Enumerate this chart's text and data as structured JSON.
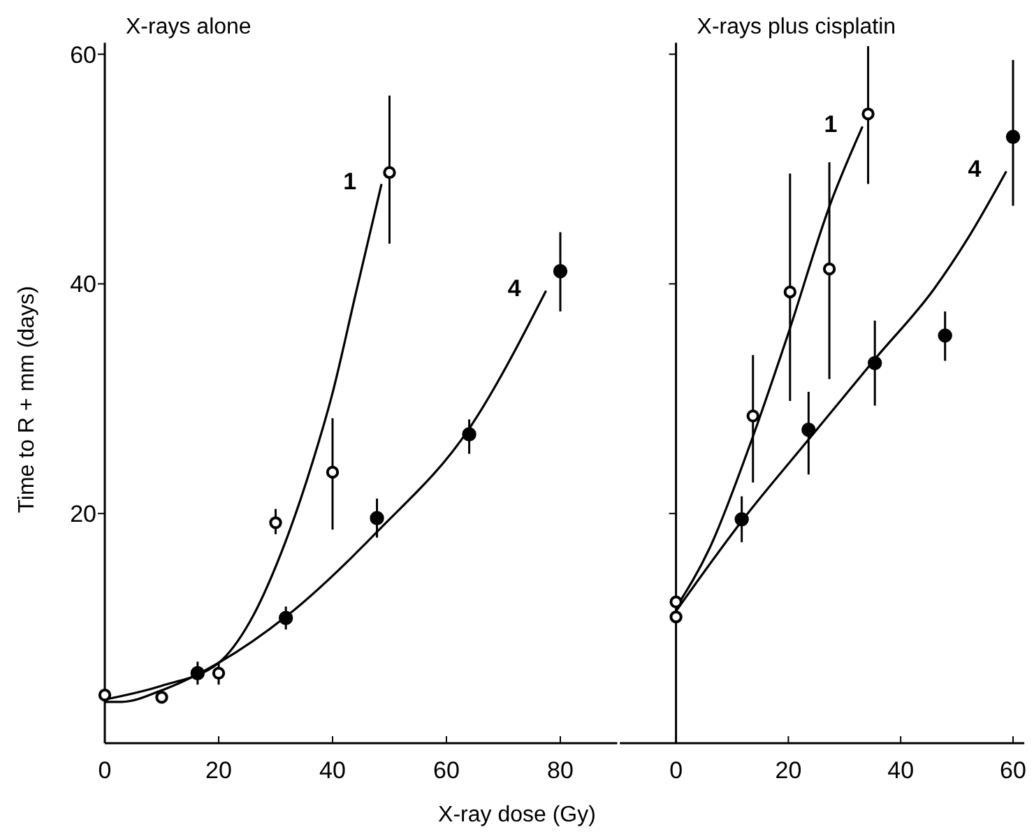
{
  "chart_data": [
    {
      "type": "scatter",
      "title": "X-rays alone",
      "xlabel": "X-ray dose (Gy)",
      "ylabel": "Time to R + mm (days)",
      "xlim": [
        0,
        90
      ],
      "ylim": [
        0,
        61
      ],
      "xticks": [
        0,
        20,
        40,
        60,
        80
      ],
      "yticks": [
        20,
        40,
        60
      ],
      "grid": false,
      "series": [
        {
          "type": "line",
          "name": "1",
          "color": "#000000",
          "x": [
            0,
            10,
            20,
            25.5,
            31,
            36.5,
            40,
            44,
            48.6
          ],
          "values": [
            3.8,
            5,
            7,
            10.6,
            16.6,
            24.5,
            30.5,
            39,
            48.7
          ]
        },
        {
          "type": "line",
          "name": "4",
          "color": "#000000",
          "x": [
            0,
            3,
            10,
            20,
            32,
            48,
            64,
            77.5
          ],
          "values": [
            3.6,
            3.6,
            4.6,
            7,
            11.1,
            18.5,
            27.4,
            39.4
          ]
        },
        {
          "color": "#000000",
          "marker": "circle",
          "x": [
            0,
            10,
            20,
            30,
            40,
            50
          ],
          "values": [
            4.2,
            4,
            6.1,
            19.2,
            23.6,
            49.7
          ],
          "errors": [
            null,
            null,
            [
              5.1,
              7.1
            ],
            [
              18.2,
              20.4
            ],
            [
              18.6,
              28.3
            ],
            [
              43.5,
              56.4
            ]
          ]
        },
        {
          "color": "#000000",
          "marker": "circle",
          "x": [
            16.3,
            31.8,
            47.8,
            64,
            80
          ],
          "values": [
            6.1,
            10.9,
            19.6,
            26.9,
            41.1
          ],
          "errors": [
            [
              5.1,
              7.1
            ],
            [
              9.9,
              11.9
            ],
            [
              17.9,
              21.3
            ],
            [
              25.2,
              28.2
            ],
            [
              37.6,
              44.5
            ]
          ]
        }
      ]
    },
    {
      "type": "scatter",
      "title": "X-rays plus cisplatin",
      "xlim": [
        -10,
        62
      ],
      "ylim": [
        0,
        61
      ],
      "xticks": [
        0,
        20,
        40,
        60
      ],
      "yticks": [
        20,
        40,
        60
      ],
      "tick_labels": "x",
      "series": [
        {
          "type": "line",
          "name": "1",
          "color": "#000000",
          "x": [
            0,
            6,
            12.8,
            19.8,
            27.5,
            33.2
          ],
          "values": [
            11.8,
            17,
            25.5,
            35.4,
            47,
            53.7
          ]
        },
        {
          "type": "line",
          "name": "4",
          "color": "#000000",
          "x": [
            0,
            11.8,
            23.7,
            35.5,
            46,
            52,
            58.8
          ],
          "values": [
            11.5,
            19.4,
            26.5,
            33.5,
            39.6,
            44,
            49.8
          ]
        },
        {
          "color": "#000000",
          "marker": "circle",
          "x": [
            0,
            0,
            13.7,
            20.3,
            27.3,
            34.2
          ],
          "values": [
            12.3,
            11,
            28.5,
            39.3,
            41.3,
            54.8
          ],
          "errors": [
            null,
            null,
            [
              22.7,
              33.8
            ],
            [
              29.8,
              49.6
            ],
            [
              31.7,
              50.6
            ],
            [
              48.7,
              60.7
            ]
          ]
        },
        {
          "color": "#000000",
          "marker": "circle",
          "x": [
            11.7,
            23.6,
            35.4,
            47.9,
            60
          ],
          "values": [
            19.5,
            27.3,
            33.1,
            35.5,
            52.8
          ],
          "errors": [
            [
              17.5,
              21.5
            ],
            [
              23.4,
              30.6
            ],
            [
              29.4,
              36.8
            ],
            [
              33.3,
              37.6
            ],
            [
              46.8,
              59.5
            ]
          ]
        }
      ]
    }
  ]
}
